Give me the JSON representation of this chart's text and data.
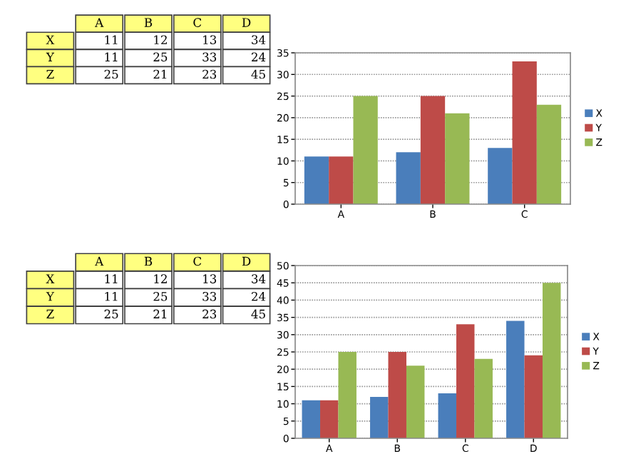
{
  "chart_data": [
    {
      "type": "other",
      "annotations": [
        "A",
        "B",
        "C",
        "D",
        "X",
        "11",
        "12",
        "13",
        "34",
        "Y",
        "11",
        "25",
        "33",
        "24",
        "Z",
        "25",
        "21",
        "23",
        "45"
      ]
    },
    {
      "type": "bar",
      "categories": [
        "A",
        "B",
        "C"
      ],
      "ylim": [
        0,
        35
      ],
      "yticks": [
        0,
        5,
        10,
        15,
        20,
        25,
        30,
        35
      ],
      "grid": "y",
      "legend": "right",
      "series": [
        {
          "name": "X",
          "color": "#4a7ebb",
          "values": [
            11,
            12,
            13
          ]
        },
        {
          "name": "Y",
          "color": "#be4b48",
          "values": [
            11,
            25,
            33
          ]
        },
        {
          "name": "Z",
          "color": "#98b954",
          "values": [
            25,
            21,
            23
          ]
        }
      ]
    },
    {
      "type": "other",
      "annotations": [
        "A",
        "B",
        "C",
        "D",
        "X",
        "11",
        "12",
        "13",
        "34",
        "Y",
        "11",
        "25",
        "33",
        "24",
        "Z",
        "25",
        "21",
        "23",
        "45"
      ]
    },
    {
      "type": "bar",
      "categories": [
        "A",
        "B",
        "C",
        "D"
      ],
      "ylim": [
        0,
        50
      ],
      "yticks": [
        0,
        5,
        10,
        15,
        20,
        25,
        30,
        35,
        40,
        45,
        50
      ],
      "grid": "y",
      "legend": "right",
      "series": [
        {
          "name": "X",
          "color": "#4a7ebb",
          "values": [
            11,
            12,
            13,
            34
          ]
        },
        {
          "name": "Y",
          "color": "#be4b48",
          "values": [
            11,
            25,
            33,
            24
          ]
        },
        {
          "name": "Z",
          "color": "#98b954",
          "values": [
            25,
            21,
            23,
            45
          ]
        }
      ]
    }
  ]
}
